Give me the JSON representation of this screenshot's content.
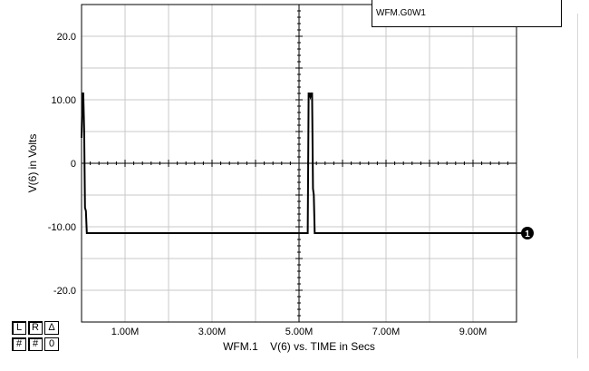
{
  "chart_data": {
    "type": "line",
    "ylabel": "V(6) in Volts",
    "xlabel": "WFM.1    V(6) vs. TIME in Secs",
    "x_ticks": [
      "1.00M",
      "3.00M",
      "5.00M",
      "7.00M",
      "9.00M"
    ],
    "y_ticks": [
      "20.0",
      "10.00",
      "0",
      "-10.00",
      "-20.0"
    ],
    "y_tick_values": [
      20,
      10,
      0,
      -10,
      -20
    ],
    "xlim": [
      0,
      0.01
    ],
    "ylim": [
      -25,
      25
    ],
    "grid": true,
    "series": [
      {
        "name": "WFM.1",
        "x": [
          0,
          2e-05,
          4e-05,
          6e-05,
          8e-05,
          0.0001,
          0.00012,
          0.00015,
          0.0052,
          0.00521,
          0.00522,
          0.00524,
          0.00526,
          0.00528,
          0.0053,
          0.00532,
          0.00534,
          0.00536,
          0.0054,
          0.01
        ],
        "values": [
          4,
          11,
          11,
          5,
          -7,
          -7.5,
          -11,
          -11,
          -11,
          0,
          11,
          11,
          10.5,
          11,
          11,
          -4,
          -5,
          -11,
          -11,
          -11
        ]
      }
    ],
    "marker_label": "1"
  },
  "legend": {
    "text": "WFM.G0W1"
  },
  "buttons": {
    "row1": [
      "L",
      "R",
      "Δ"
    ],
    "row2": [
      "#",
      "#",
      "0"
    ]
  }
}
